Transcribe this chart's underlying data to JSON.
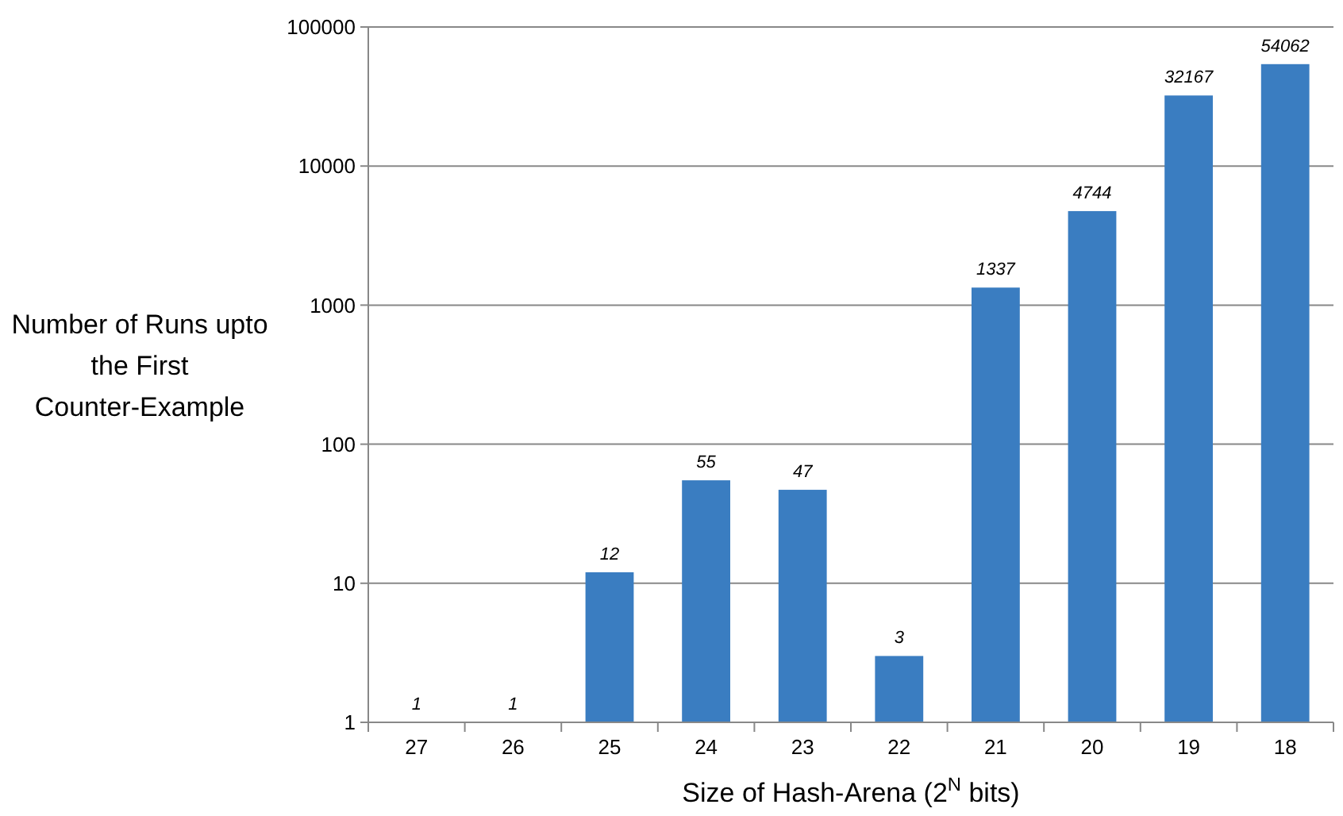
{
  "chart_data": {
    "type": "bar",
    "xlabel": "Size of Hash-Arena (2$^{N}$ bits)",
    "ylabel": "Number of Runs upto the First Counter-Example",
    "categories": [
      "27",
      "26",
      "25",
      "24",
      "23",
      "22",
      "21",
      "20",
      "19",
      "18"
    ],
    "values": [
      1,
      1,
      12,
      55,
      47,
      3,
      1337,
      4744,
      32167,
      54062
    ],
    "color": "#3a7dc1",
    "log": true,
    "ylim": [
      1,
      100000
    ],
    "yticks": [
      1,
      10,
      100,
      1000,
      10000,
      100000
    ],
    "grid": "y",
    "data_labels": true
  }
}
